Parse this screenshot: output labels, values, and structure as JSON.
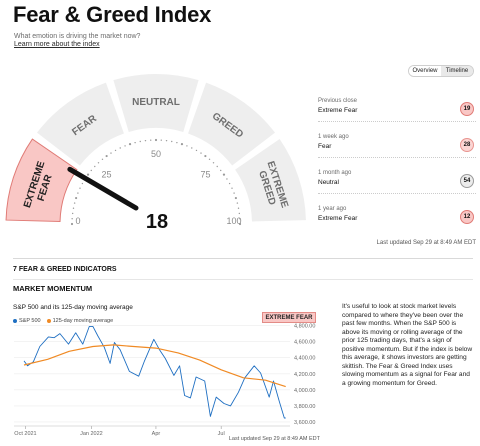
{
  "header": {
    "title": "Fear & Greed Index",
    "subtitle": "What emotion is driving the market now?",
    "learn_link": "Learn more about the index"
  },
  "tabs": [
    {
      "label": "Overview",
      "active": true
    },
    {
      "label": "Timeline",
      "active": false
    }
  ],
  "gauge": {
    "value": 18,
    "value_text": "18",
    "segments": [
      "EXTREME FEAR",
      "FEAR",
      "NEUTRAL",
      "GREED",
      "EXTREME GREED"
    ],
    "active_segment": "EXTREME FEAR",
    "scale_labels": [
      "0",
      "25",
      "50",
      "75",
      "100"
    ],
    "colors": {
      "active": "#f9c7c5",
      "active_border": "#e07b76",
      "inactive": "#eeeeee",
      "needle": "#111111"
    }
  },
  "history": [
    {
      "label": "Previous close",
      "sentiment": "Extreme Fear",
      "value": "19",
      "bg": "#f9c7c5",
      "border": "#e07b76"
    },
    {
      "label": "1 week ago",
      "sentiment": "Fear",
      "value": "28",
      "bg": "#fbd5d3",
      "border": "#e8948f"
    },
    {
      "label": "1 month ago",
      "sentiment": "Neutral",
      "value": "54",
      "bg": "#ececec",
      "border": "#9a9a9a"
    },
    {
      "label": "1 year ago",
      "sentiment": "Extreme Fear",
      "value": "12",
      "bg": "#f9c7c5",
      "border": "#e07b76"
    }
  ],
  "last_updated": "Last updated Sep 29 at 8:49 AM EDT",
  "indicators": {
    "section_title": "7 FEAR & GREED INDICATORS",
    "current": {
      "name": "MARKET MOMENTUM",
      "status_badge": "EXTREME FEAR",
      "description": "It's useful to look at stock market levels compared to where they've been over the past few months. When the S&P 500 is above its moving or rolling average of the prior 125 trading days, that's a sign of positive momentum. But if the index is below this average, it shows investors are getting skittish. The Fear & Greed Index uses slowing momentum as a signal for Fear and a growing momentum for Greed.",
      "last_updated": "Last updated Sep 29 at 8:49 AM EDT"
    }
  },
  "chart_data": {
    "type": "line",
    "title": "S&P 500 and its 125-day moving average",
    "x_ticks": [
      "Oct 2021",
      "Jan 2022",
      "Apr",
      "Jul"
    ],
    "y_ticks": [
      "3,600.00",
      "3,800.00",
      "4,000.00",
      "4,200.00",
      "4,400.00",
      "4,600.00",
      "4,800.00"
    ],
    "ylim": [
      3550,
      4820
    ],
    "series": [
      {
        "name": "S&P 500",
        "color": "#1f6fc2",
        "x": [
          "2021-09-29",
          "2021-10-04",
          "2021-10-12",
          "2021-10-21",
          "2021-11-02",
          "2021-11-10",
          "2021-11-18",
          "2021-11-30",
          "2021-12-10",
          "2021-12-20",
          "2021-12-29",
          "2022-01-03",
          "2022-01-10",
          "2022-01-19",
          "2022-01-27",
          "2022-02-02",
          "2022-02-10",
          "2022-02-23",
          "2022-03-08",
          "2022-03-16",
          "2022-03-29",
          "2022-04-06",
          "2022-04-14",
          "2022-04-26",
          "2022-05-04",
          "2022-05-11",
          "2022-05-19",
          "2022-05-27",
          "2022-06-08",
          "2022-06-16",
          "2022-06-24",
          "2022-07-05",
          "2022-07-14",
          "2022-07-25",
          "2022-08-03",
          "2022-08-16",
          "2022-08-25",
          "2022-09-06",
          "2022-09-12",
          "2022-09-20",
          "2022-09-27",
          "2022-09-29"
        ],
        "values": [
          4360,
          4300,
          4350,
          4540,
          4660,
          4650,
          4700,
          4570,
          4710,
          4570,
          4790,
          4790,
          4670,
          4530,
          4330,
          4590,
          4500,
          4230,
          4170,
          4360,
          4630,
          4500,
          4390,
          4180,
          4300,
          3930,
          3900,
          4160,
          4110,
          3670,
          3910,
          3830,
          3800,
          3970,
          4150,
          4300,
          4210,
          3910,
          4110,
          3860,
          3650,
          3650
        ]
      },
      {
        "name": "125-day moving average",
        "color": "#f08a24",
        "x": [
          "2021-09-29",
          "2021-11-01",
          "2021-12-01",
          "2022-01-03",
          "2022-02-01",
          "2022-03-01",
          "2022-04-01",
          "2022-05-02",
          "2022-06-01",
          "2022-07-01",
          "2022-08-01",
          "2022-09-01",
          "2022-09-29"
        ],
        "values": [
          4310,
          4380,
          4480,
          4540,
          4560,
          4540,
          4520,
          4460,
          4370,
          4250,
          4150,
          4120,
          4040
        ]
      }
    ]
  }
}
